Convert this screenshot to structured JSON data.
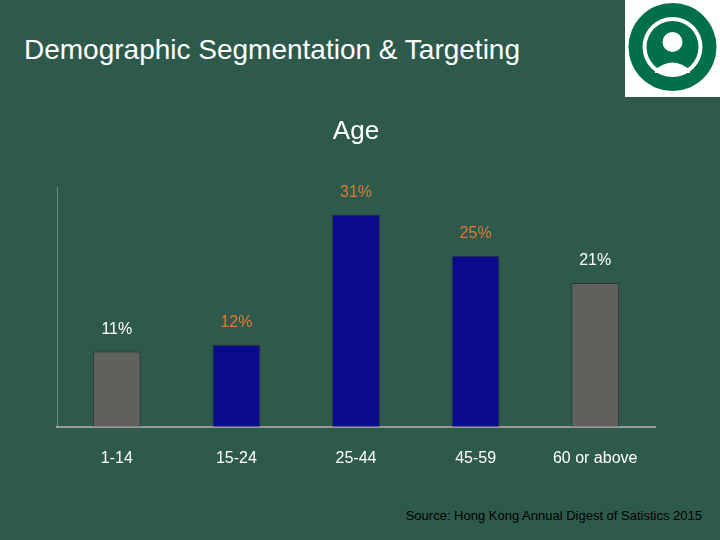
{
  "header": {
    "title": "Demographic Segmentation & Targeting"
  },
  "chart_data": {
    "type": "bar",
    "title": "Age",
    "categories": [
      "1-14",
      "15-24",
      "25-44",
      "45-59",
      "60 or above"
    ],
    "values": [
      11,
      12,
      31,
      25,
      21
    ],
    "value_labels": [
      "11%",
      "12%",
      "31%",
      "25%",
      "21%"
    ],
    "colors": [
      "#5f615d",
      "#0a0a8c",
      "#0a0a8c",
      "#0a0a8c",
      "#5f615d"
    ],
    "ylim": [
      0,
      35
    ],
    "grid": false,
    "data_labels": true,
    "tick_labels": "x",
    "source": "Source: Hong Kong Annual Digest of Satistics 2015"
  }
}
